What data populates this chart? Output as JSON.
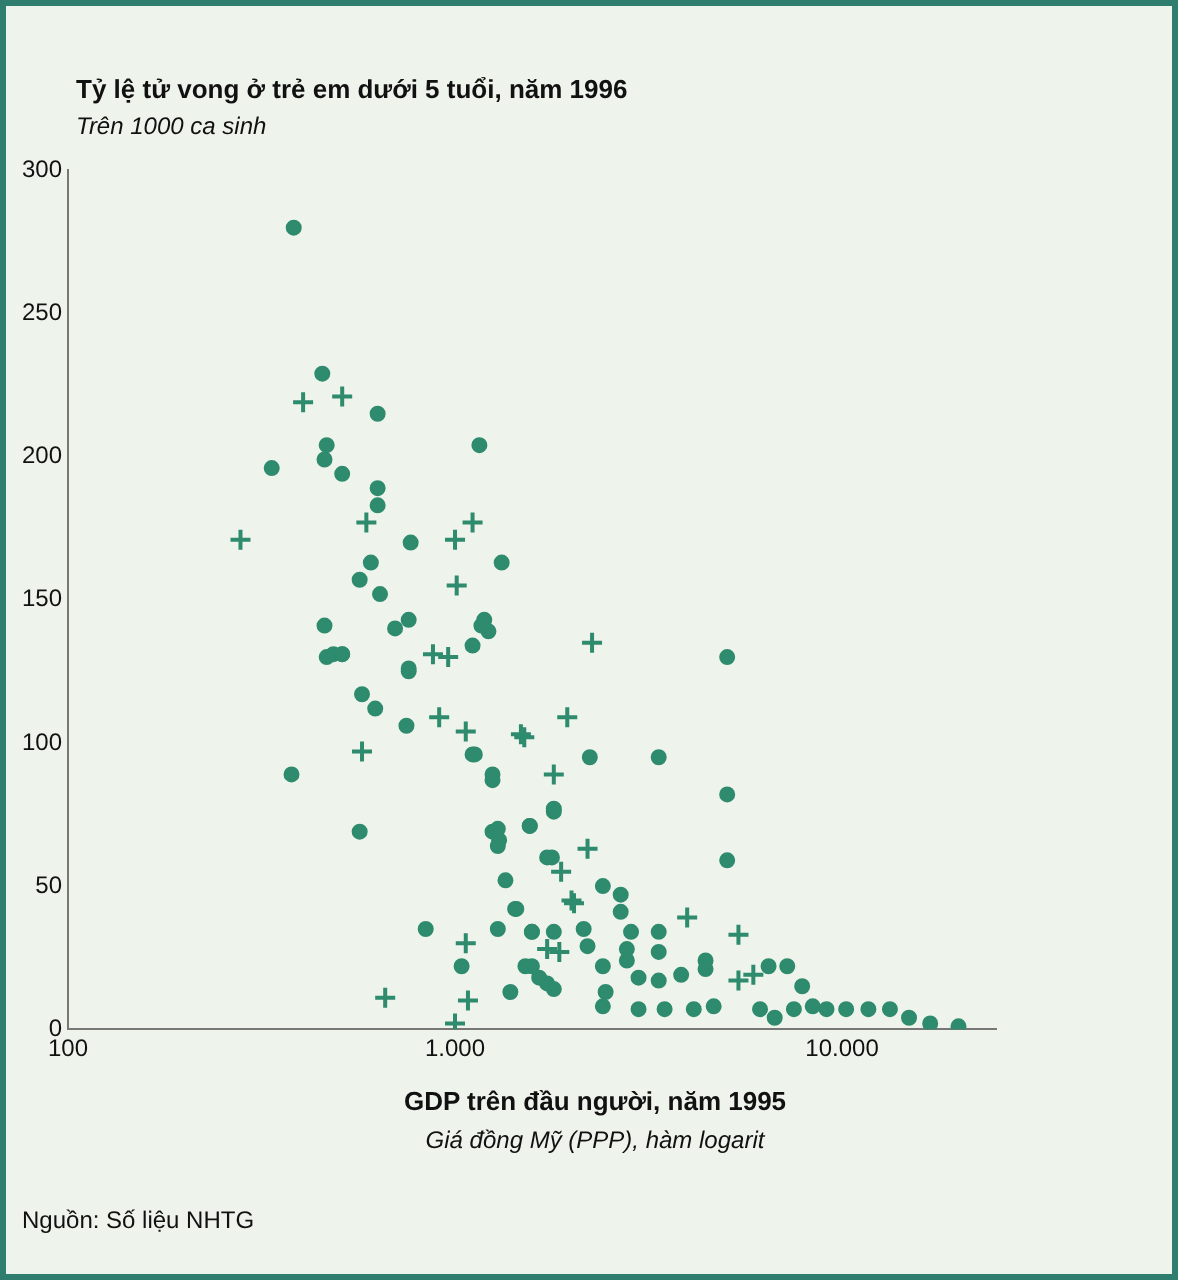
{
  "chart_data": {
    "type": "scatter",
    "title": "Tỷ lệ tử vong ở trẻ em dưới 5 tuổi, năm 1996",
    "subtitle": "Trên 1000 ca sinh",
    "xlabel": "GDP trên đầu người, năm 1995",
    "annotations": [
      "Giá đồng Mỹ (PPP), hàm logarit",
      "Nguồn: Số liệu NHTG"
    ],
    "log": "x",
    "xlim": [
      100,
      25000
    ],
    "xticks": [
      100,
      {
        "value": 1000,
        "label": "1.000"
      },
      {
        "value": 10000,
        "label": "10.000"
      }
    ],
    "ylim": [
      0,
      300
    ],
    "yticks": [
      0,
      50,
      100,
      150,
      200,
      250,
      300
    ],
    "grid": false,
    "legend": false,
    "series": [
      {
        "marker": "circle",
        "color": "#2e8b6e",
        "x": [
          383,
          454,
          631,
          466,
          460,
          511,
          631,
          631,
          768,
          1320,
          606,
          567,
          640,
          460,
          700,
          759,
          1190,
          1220,
          466,
          511,
          759,
          1110,
          1156,
          336,
          1170,
          485,
          511,
          759,
          575,
          622,
          749,
          1125,
          1250,
          378,
          567,
          1250,
          1560,
          1800,
          1300,
          1780,
          1350,
          840,
          1430,
          1580,
          1040,
          1580,
          1730,
          1390,
          5050,
          2230,
          3360,
          1110,
          1250,
          5050,
          1800,
          1290,
          1560,
          1290,
          1730,
          5050,
          2410,
          2680,
          2680,
          1440,
          1290,
          1580,
          1800,
          2150,
          2850,
          3360,
          2200,
          2780,
          3360,
          1520,
          2410,
          2780,
          4440,
          7220,
          1650,
          1800,
          2450,
          2980,
          3360,
          3840,
          4440,
          6460,
          7890,
          2410,
          2980,
          3480,
          4140,
          4660,
          6140,
          6700,
          7510,
          8400,
          9120,
          10250,
          11700,
          13300,
          14900,
          16900,
          20000
        ],
        "values": [
          280,
          229,
          215,
          204,
          199,
          194,
          189,
          183,
          170,
          163,
          163,
          157,
          152,
          141,
          140,
          143,
          143,
          139,
          130,
          131,
          126,
          134,
          204,
          196,
          141,
          131,
          131,
          125,
          117,
          112,
          106,
          96,
          87,
          89,
          69,
          69,
          71,
          76,
          66,
          60,
          52,
          35,
          42,
          34,
          22,
          22,
          16,
          13,
          130,
          95,
          95,
          96,
          89,
          82,
          77,
          70,
          71,
          64,
          60,
          59,
          50,
          47,
          41,
          42,
          35,
          34,
          34,
          35,
          34,
          34,
          29,
          28,
          27,
          22,
          22,
          24,
          24,
          22,
          18,
          14,
          13,
          18,
          17,
          19,
          21,
          22,
          15,
          8,
          7,
          7,
          7,
          8,
          7,
          4,
          7,
          8,
          7,
          7,
          7,
          7,
          4,
          2,
          1
        ]
      },
      {
        "marker": "cross",
        "color": "#2e8b6e",
        "x": [
          279,
          405,
          511,
          590,
          1000,
          1110,
          1010,
          877,
          960,
          910,
          1066,
          575,
          1800,
          1510,
          1950,
          1880,
          1066,
          660,
          1080,
          1000,
          1860,
          2000,
          2260,
          1480,
          2200,
          2030,
          3980,
          5400,
          1730,
          5400,
          5900
        ],
        "values": [
          171,
          219,
          221,
          177,
          171,
          177,
          155,
          131,
          130,
          109,
          104,
          97,
          89,
          102,
          109,
          55,
          30,
          11,
          10,
          2,
          27,
          45,
          135,
          103,
          63,
          44,
          39,
          33,
          28,
          17,
          19
        ]
      }
    ]
  }
}
